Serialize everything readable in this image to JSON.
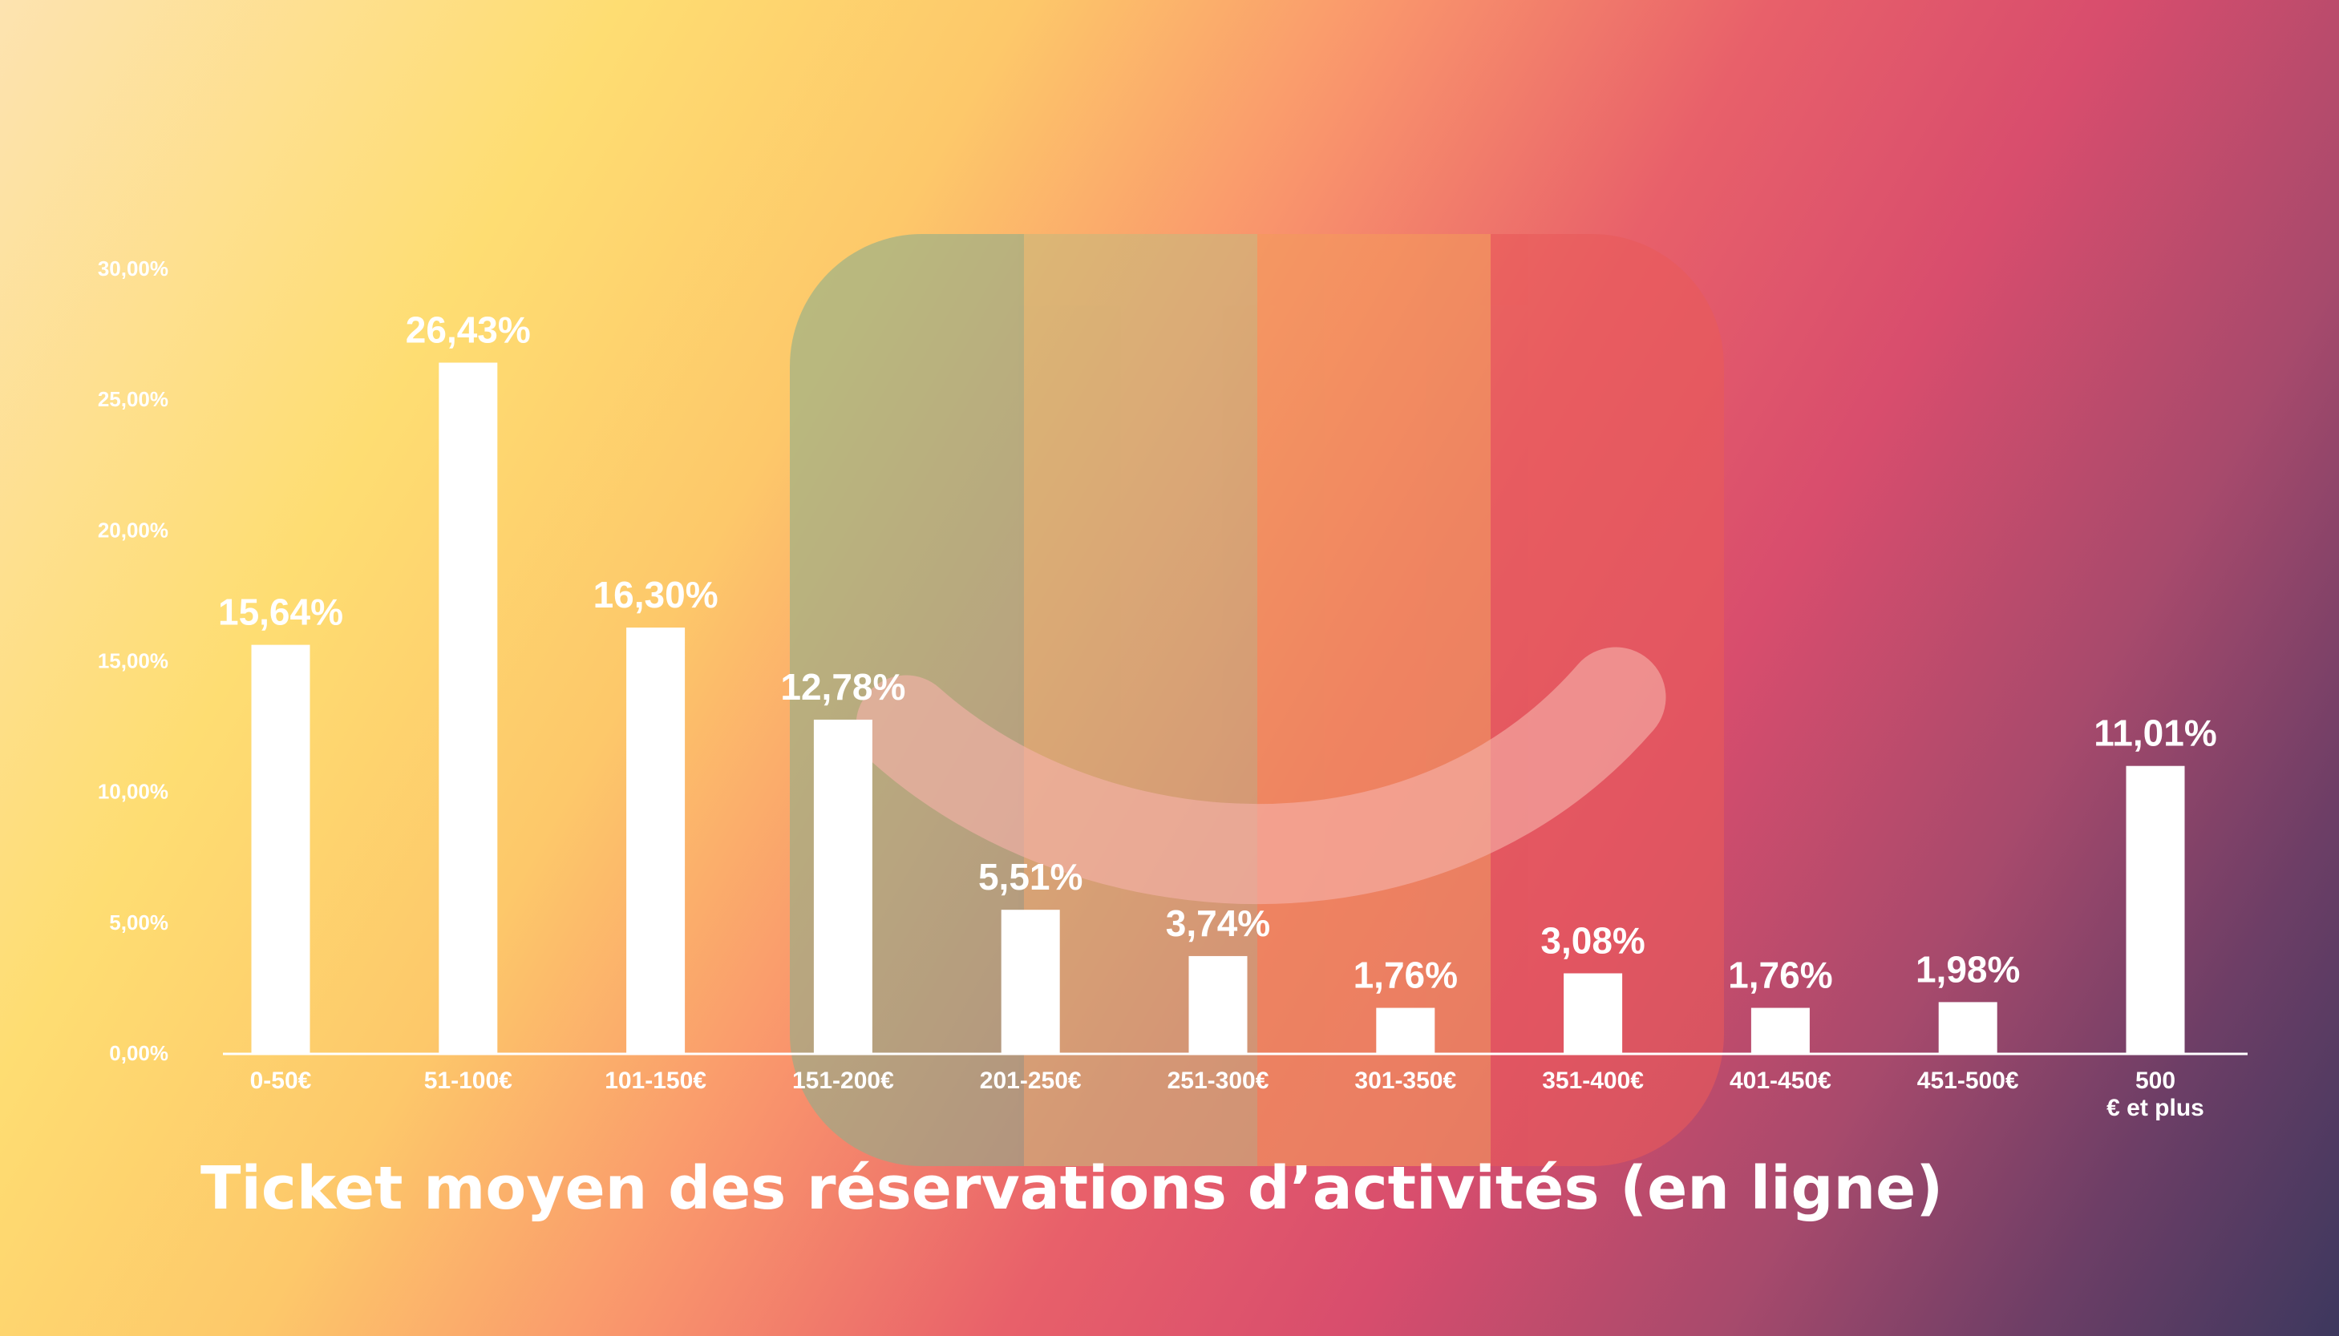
{
  "chart_data": {
    "type": "bar",
    "title": "Ticket moyen des réservations d’activités (en ligne)",
    "categories": [
      "0-50€",
      "51-100€",
      "101-150€",
      "151-200€",
      "201-250€",
      "251-300€",
      "301-350€",
      "351-400€",
      "401-450€",
      "451-500€",
      "500 € et plus"
    ],
    "category_lines": [
      [
        "0-50€"
      ],
      [
        "51-100€"
      ],
      [
        "101-150€"
      ],
      [
        "151-200€"
      ],
      [
        "201-250€"
      ],
      [
        "251-300€"
      ],
      [
        "301-350€"
      ],
      [
        "351-400€"
      ],
      [
        "401-450€"
      ],
      [
        "451-500€"
      ],
      [
        "500",
        "€ et plus"
      ]
    ],
    "values": [
      15.64,
      26.43,
      16.3,
      12.78,
      5.51,
      3.74,
      1.76,
      3.08,
      1.76,
      1.98,
      11.01
    ],
    "value_labels": [
      "15,64%",
      "26,43%",
      "16,30%",
      "12,78%",
      "5,51%",
      "3,74%",
      "1,76%",
      "3,08%",
      "1,76%",
      "1,98%",
      "11,01%"
    ],
    "yticks": [
      0,
      5,
      10,
      15,
      20,
      25,
      30
    ],
    "ytick_labels": [
      "0,00%",
      "5,00%",
      "10,00%",
      "15,00%",
      "20,00%",
      "25,00%",
      "30,00%"
    ],
    "ylim": [
      0,
      30
    ],
    "xlabel": "",
    "ylabel": "",
    "grid": false,
    "legend": "none",
    "bar_color": "#ffffff",
    "label_color": "#ffffff"
  },
  "decor": {
    "logo_icon": "smile-logo-icon",
    "logo_band_colors": [
      "#8fae8a",
      "#c8b87c",
      "#f39a5c",
      "#e85a5a"
    ]
  }
}
